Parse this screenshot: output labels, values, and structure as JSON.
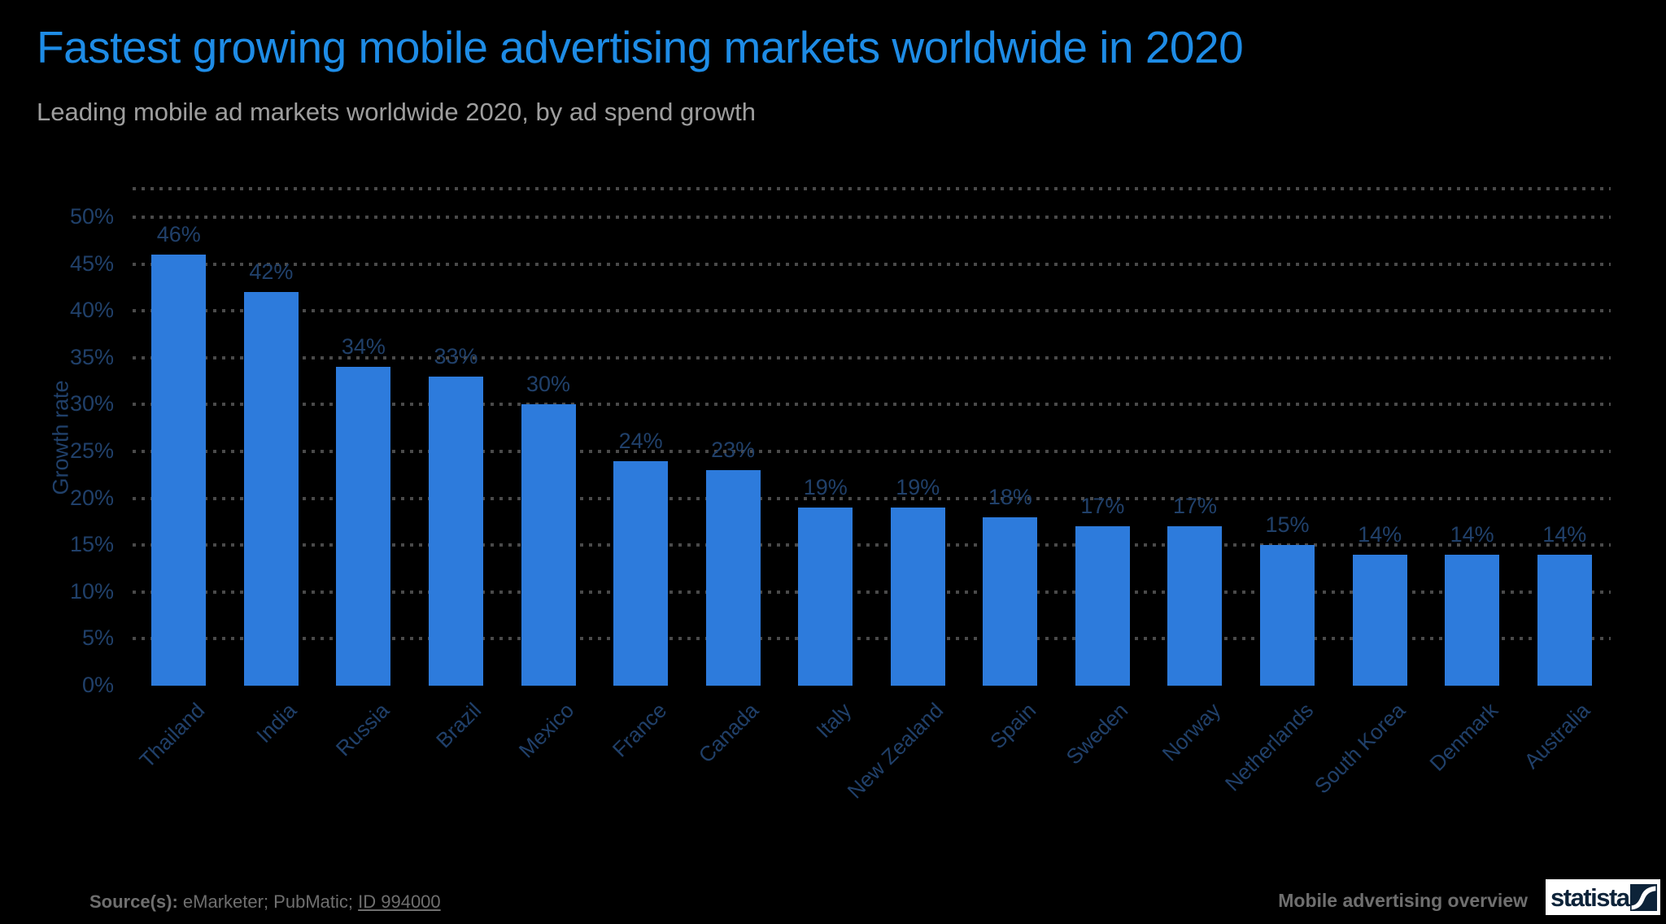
{
  "header": {
    "title": "Fastest growing mobile advertising markets worldwide in 2020",
    "subtitle": "Leading mobile ad markets worldwide 2020, by ad spend growth"
  },
  "chart_data": {
    "type": "bar",
    "title": "Fastest growing mobile advertising markets worldwide in 2020",
    "subtitle": "Leading mobile ad markets worldwide 2020, by ad spend growth",
    "xlabel": "",
    "ylabel": "Growth rate",
    "ylim": [
      0,
      53
    ],
    "yticks": [
      0,
      5,
      10,
      15,
      20,
      25,
      30,
      35,
      40,
      45,
      50
    ],
    "ytick_suffix": "%",
    "grid": "horizontal-dotted",
    "legend": "none",
    "categories": [
      "Thailand",
      "India",
      "Russia",
      "Brazil",
      "Mexico",
      "France",
      "Canada",
      "Italy",
      "New Zealand",
      "Spain",
      "Sweden",
      "Norway",
      "Netherlands",
      "South Korea",
      "Denmark",
      "Australia"
    ],
    "values": [
      46,
      42,
      34,
      33,
      30,
      24,
      23,
      19,
      19,
      18,
      17,
      17,
      15,
      14,
      14,
      14
    ],
    "value_suffix": "%"
  },
  "footer": {
    "source_label": "Source(s):",
    "sources": "eMarketer; PubMatic;",
    "source_link": "ID 994000",
    "topic": "Mobile advertising overview",
    "logo_text": "statista"
  },
  "colors": {
    "background": "#000000",
    "title": "#1e8ce6",
    "subtitle": "#9e9e9e",
    "bar": "#2d7bdc",
    "axis_text": "#20406a",
    "gridline": "#4a4a4a",
    "footer_text": "#6f6f6f",
    "logo_navy": "#0d2339"
  }
}
